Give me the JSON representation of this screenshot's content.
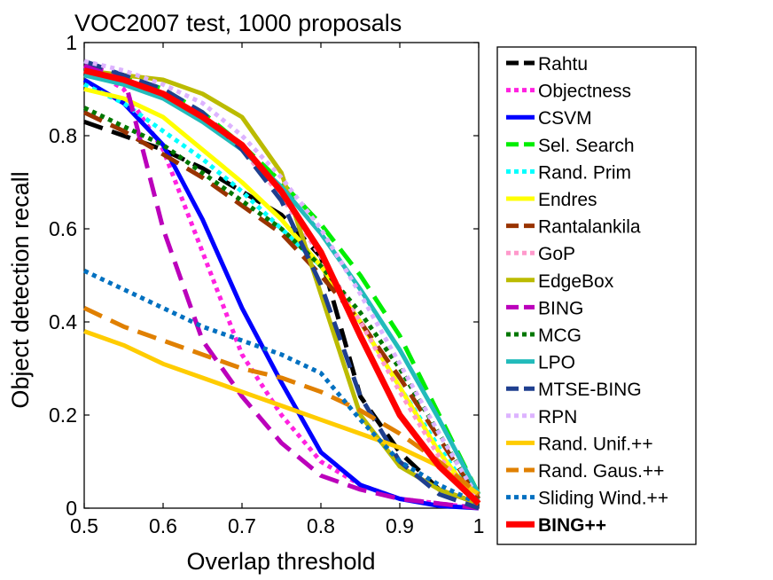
{
  "chart_data": {
    "type": "line",
    "title": "VOC2007 test, 1000 proposals",
    "xlabel": "Overlap threshold",
    "ylabel": "Object detection recall",
    "xlim": [
      0.5,
      1
    ],
    "ylim": [
      0,
      1
    ],
    "xticks": [
      "0.5",
      "0.6",
      "0.7",
      "0.8",
      "0.9",
      "1"
    ],
    "yticks": [
      "0",
      "0.2",
      "0.4",
      "0.6",
      "0.8",
      "1"
    ],
    "legend_position": "outside-right",
    "x": [
      0.5,
      0.55,
      0.6,
      0.65,
      0.7,
      0.75,
      0.8,
      0.85,
      0.9,
      0.95,
      1.0
    ],
    "series": [
      {
        "name": "Rahtu",
        "color": "#000000",
        "style": "dashed",
        "values": [
          0.83,
          0.8,
          0.77,
          0.73,
          0.68,
          0.63,
          0.54,
          0.24,
          0.12,
          0.04,
          0.01
        ]
      },
      {
        "name": "Objectness",
        "color": "#ff22e0",
        "style": "dotted",
        "values": [
          0.95,
          0.9,
          0.77,
          0.55,
          0.33,
          0.2,
          0.1,
          0.05,
          0.02,
          0.01,
          0.0
        ]
      },
      {
        "name": "CSVM",
        "color": "#0000ff",
        "style": "solid",
        "values": [
          0.92,
          0.87,
          0.78,
          0.62,
          0.43,
          0.27,
          0.12,
          0.05,
          0.02,
          0.005,
          0.0
        ]
      },
      {
        "name": "Sel. Search",
        "color": "#00ee00",
        "style": "dashed",
        "values": [
          0.94,
          0.93,
          0.9,
          0.85,
          0.78,
          0.7,
          0.61,
          0.5,
          0.37,
          0.2,
          0.03
        ]
      },
      {
        "name": "Rand. Prim",
        "color": "#00ffff",
        "style": "dotted",
        "values": [
          0.91,
          0.87,
          0.81,
          0.75,
          0.68,
          0.6,
          0.52,
          0.4,
          0.26,
          0.13,
          0.01
        ]
      },
      {
        "name": "Endres",
        "color": "#ffff00",
        "style": "solid",
        "values": [
          0.9,
          0.88,
          0.84,
          0.77,
          0.7,
          0.62,
          0.52,
          0.4,
          0.26,
          0.12,
          0.01
        ]
      },
      {
        "name": "Rantalankila",
        "color": "#993300",
        "style": "dashed",
        "values": [
          0.85,
          0.81,
          0.76,
          0.71,
          0.65,
          0.59,
          0.5,
          0.4,
          0.28,
          0.15,
          0.02
        ]
      },
      {
        "name": "GoP",
        "color": "#ff99cc",
        "style": "dotted",
        "values": [
          0.94,
          0.92,
          0.89,
          0.84,
          0.77,
          0.67,
          0.54,
          0.4,
          0.25,
          0.11,
          0.01
        ]
      },
      {
        "name": "EdgeBox",
        "color": "#bbbb00",
        "style": "solid",
        "values": [
          0.94,
          0.93,
          0.92,
          0.89,
          0.84,
          0.72,
          0.46,
          0.2,
          0.09,
          0.04,
          0.01
        ]
      },
      {
        "name": "BING",
        "color": "#bb00bb",
        "style": "dashed",
        "values": [
          0.95,
          0.93,
          0.6,
          0.36,
          0.24,
          0.14,
          0.07,
          0.04,
          0.02,
          0.01,
          0.0
        ]
      },
      {
        "name": "MCG",
        "color": "#007700",
        "style": "dotted",
        "values": [
          0.86,
          0.82,
          0.78,
          0.72,
          0.66,
          0.6,
          0.52,
          0.42,
          0.3,
          0.16,
          0.02
        ]
      },
      {
        "name": "LPO",
        "color": "#22bbbb",
        "style": "solid",
        "values": [
          0.93,
          0.91,
          0.88,
          0.83,
          0.77,
          0.69,
          0.59,
          0.47,
          0.34,
          0.19,
          0.03
        ]
      },
      {
        "name": "MTSE-BING",
        "color": "#1f3f8f",
        "style": "dashed",
        "values": [
          0.96,
          0.93,
          0.9,
          0.85,
          0.77,
          0.66,
          0.48,
          0.24,
          0.1,
          0.03,
          0.0
        ]
      },
      {
        "name": "RPN",
        "color": "#ddb3ff",
        "style": "dotted",
        "values": [
          0.96,
          0.94,
          0.91,
          0.87,
          0.8,
          0.71,
          0.6,
          0.46,
          0.31,
          0.16,
          0.02
        ]
      },
      {
        "name": "Rand. Unif.++",
        "color": "#ffcc00",
        "style": "solid",
        "values": [
          0.38,
          0.35,
          0.31,
          0.28,
          0.25,
          0.22,
          0.19,
          0.16,
          0.13,
          0.09,
          0.03
        ]
      },
      {
        "name": "Rand. Gaus.++",
        "color": "#e08000",
        "style": "dashed",
        "values": [
          0.43,
          0.39,
          0.36,
          0.33,
          0.3,
          0.28,
          0.25,
          0.21,
          0.16,
          0.1,
          0.03
        ]
      },
      {
        "name": "Sliding Wind.++",
        "color": "#0070c0",
        "style": "dotted",
        "values": [
          0.51,
          0.47,
          0.43,
          0.39,
          0.36,
          0.33,
          0.29,
          0.19,
          0.1,
          0.05,
          0.01
        ]
      },
      {
        "name": "BING++",
        "color": "#ff0000",
        "style": "solid",
        "bold": true,
        "values": [
          0.94,
          0.92,
          0.89,
          0.84,
          0.78,
          0.68,
          0.55,
          0.37,
          0.2,
          0.09,
          0.01
        ]
      }
    ]
  }
}
